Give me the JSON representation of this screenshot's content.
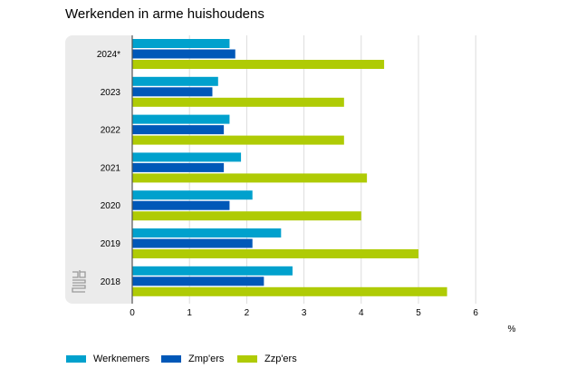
{
  "chart_data": {
    "type": "bar",
    "orientation": "horizontal",
    "title": "Werkenden in arme huishoudens",
    "xlabel": "%",
    "categories": [
      "2024*",
      "2023",
      "2022",
      "2021",
      "2020",
      "2019",
      "2018"
    ],
    "series": [
      {
        "name": "Werknemers",
        "color": "#00a1cd",
        "values": [
          1.7,
          1.5,
          1.7,
          1.9,
          2.1,
          2.6,
          2.8
        ]
      },
      {
        "name": "Zmp'ers",
        "color": "#0058b8",
        "values": [
          1.8,
          1.4,
          1.6,
          1.6,
          1.7,
          2.1,
          2.3
        ]
      },
      {
        "name": "Zzp'ers",
        "color": "#afcb05",
        "values": [
          4.4,
          3.7,
          3.7,
          4.1,
          4.0,
          5.0,
          5.5
        ]
      }
    ],
    "xlim": [
      0,
      6
    ],
    "xticks": [
      "0",
      "1",
      "2",
      "3",
      "4",
      "5",
      "6"
    ],
    "grid": true,
    "legend_position": "bottom-left"
  },
  "logo": "cbs"
}
